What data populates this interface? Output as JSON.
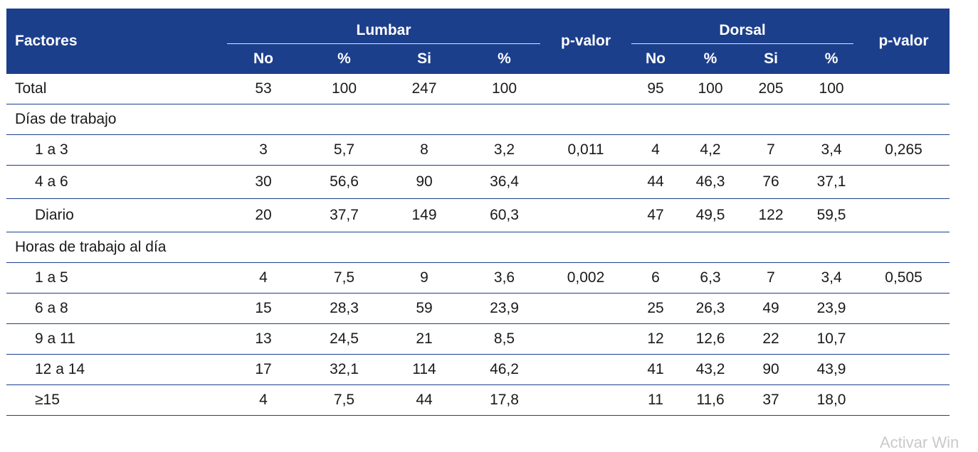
{
  "header": {
    "factores": "Factores",
    "groups": [
      {
        "title": "Lumbar",
        "cols": [
          "No",
          "%",
          "Si",
          "%"
        ]
      },
      {
        "title": "Dorsal",
        "cols": [
          "No",
          "%",
          "Si",
          "%"
        ]
      }
    ],
    "pvalor": "p-valor"
  },
  "rows": [
    {
      "type": "data",
      "label": "Total",
      "l": [
        "53",
        "100",
        "247",
        "100"
      ],
      "lp": "",
      "d": [
        "95",
        "100",
        "205",
        "100"
      ],
      "dp": ""
    },
    {
      "type": "section",
      "label": "Días de trabajo"
    },
    {
      "type": "sub",
      "label": "1 a 3",
      "l": [
        "3",
        "5,7",
        "8",
        "3,2"
      ],
      "lp": "0,011",
      "d": [
        "4",
        "4,2",
        "7",
        "3,4"
      ],
      "dp": "0,265"
    },
    {
      "type": "sub",
      "label": "4 a 6",
      "l": [
        "30",
        "56,6",
        "90",
        "36,4"
      ],
      "lp": "",
      "d": [
        "44",
        "46,3",
        "76",
        "37,1"
      ],
      "dp": ""
    },
    {
      "type": "sub",
      "label": "Diario",
      "l": [
        "20",
        "37,7",
        "149",
        "60,3"
      ],
      "lp": "",
      "d": [
        "47",
        "49,5",
        "122",
        "59,5"
      ],
      "dp": ""
    },
    {
      "type": "section",
      "label": "Horas de trabajo al día"
    },
    {
      "type": "sub",
      "label": "1 a 5",
      "l": [
        "4",
        "7,5",
        "9",
        "3,6"
      ],
      "lp": "0,002",
      "d": [
        "6",
        "6,3",
        "7",
        "3,4"
      ],
      "dp": "0,505"
    },
    {
      "type": "sub",
      "label": "6 a 8",
      "l": [
        "15",
        "28,3",
        "59",
        "23,9"
      ],
      "lp": "",
      "d": [
        "25",
        "26,3",
        "49",
        "23,9"
      ],
      "dp": ""
    },
    {
      "type": "sub",
      "label": "9 a 11",
      "l": [
        "13",
        "24,5",
        "21",
        "8,5"
      ],
      "lp": "",
      "d": [
        "12",
        "12,6",
        "22",
        "10,7"
      ],
      "dp": ""
    },
    {
      "type": "sub",
      "label": "12 a 14",
      "l": [
        "17",
        "32,1",
        "114",
        "46,2"
      ],
      "lp": "",
      "d": [
        "41",
        "43,2",
        "90",
        "43,9"
      ],
      "dp": ""
    },
    {
      "type": "sub",
      "label": "≥15",
      "l": [
        "4",
        "7,5",
        "44",
        "17,8"
      ],
      "lp": "",
      "d": [
        "11",
        "11,6",
        "37",
        "18,0"
      ],
      "dp": ""
    }
  ],
  "watermark": "Activar Win"
}
